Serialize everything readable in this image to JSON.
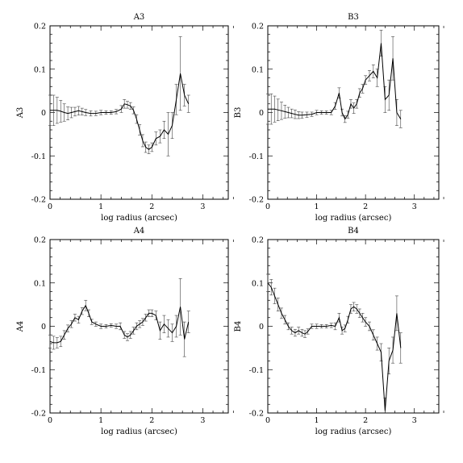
{
  "chart_data": [
    {
      "type": "line",
      "title": "A3",
      "xlabel": "log radius (arcsec)",
      "ylabel": "A3",
      "xlim": [
        0,
        3.5
      ],
      "ylim": [
        -0.2,
        0.2
      ],
      "xticks": [
        "0",
        "1",
        "2",
        "3"
      ],
      "yticks": [
        "-0.2",
        "-0.1",
        "0",
        "0.1",
        "0.2"
      ],
      "grid": false,
      "error_bars": true,
      "series": [
        {
          "x": [
            0.0,
            0.07,
            0.14,
            0.21,
            0.28,
            0.35,
            0.42,
            0.49,
            0.56,
            0.63,
            0.7,
            0.8,
            0.9,
            1.0,
            1.1,
            1.2,
            1.3,
            1.4,
            1.46,
            1.52,
            1.58,
            1.64,
            1.7,
            1.76,
            1.82,
            1.88,
            1.94,
            2.0,
            2.08,
            2.16,
            2.24,
            2.32,
            2.4,
            2.48,
            2.56,
            2.64,
            2.72
          ],
          "y": [
            0.005,
            0.005,
            0.005,
            0.003,
            0.0,
            -0.002,
            0.0,
            0.002,
            0.004,
            0.002,
            0.0,
            -0.002,
            -0.002,
            0.0,
            0.0,
            0.0,
            0.002,
            0.008,
            0.02,
            0.018,
            0.015,
            0.005,
            -0.015,
            -0.04,
            -0.065,
            -0.08,
            -0.085,
            -0.08,
            -0.06,
            -0.055,
            -0.04,
            -0.05,
            -0.03,
            0.03,
            0.09,
            0.04,
            0.02
          ],
          "err": [
            0.035,
            0.035,
            0.03,
            0.025,
            0.02,
            0.015,
            0.012,
            0.01,
            0.01,
            0.008,
            0.007,
            0.006,
            0.005,
            0.005,
            0.004,
            0.004,
            0.005,
            0.008,
            0.01,
            0.008,
            0.008,
            0.008,
            0.01,
            0.012,
            0.014,
            0.012,
            0.01,
            0.01,
            0.015,
            0.015,
            0.02,
            0.05,
            0.03,
            0.035,
            0.085,
            0.025,
            0.02
          ]
        }
      ]
    },
    {
      "type": "line",
      "title": "B3",
      "xlabel": "log radius (arcsec)",
      "ylabel": "B3",
      "xlim": [
        0,
        3.5
      ],
      "ylim": [
        -0.2,
        0.2
      ],
      "xticks": [
        "0",
        "1",
        "2",
        "3"
      ],
      "yticks": [
        "-0.2",
        "-0.1",
        "0",
        "0.1",
        "0.2"
      ],
      "grid": false,
      "error_bars": true,
      "series": [
        {
          "x": [
            0.0,
            0.07,
            0.14,
            0.21,
            0.28,
            0.35,
            0.42,
            0.49,
            0.56,
            0.63,
            0.7,
            0.8,
            0.9,
            1.0,
            1.1,
            1.2,
            1.3,
            1.38,
            1.46,
            1.52,
            1.58,
            1.64,
            1.7,
            1.76,
            1.82,
            1.88,
            1.94,
            2.0,
            2.08,
            2.16,
            2.24,
            2.32,
            2.4,
            2.48,
            2.56,
            2.64,
            2.72
          ],
          "y": [
            0.008,
            0.008,
            0.008,
            0.006,
            0.004,
            0.002,
            0.0,
            -0.002,
            -0.004,
            -0.006,
            -0.006,
            -0.005,
            -0.004,
            0.0,
            0.0,
            0.0,
            0.0,
            0.015,
            0.045,
            0.0,
            -0.015,
            -0.005,
            0.02,
            0.01,
            0.02,
            0.045,
            0.055,
            0.075,
            0.085,
            0.095,
            0.08,
            0.16,
            0.03,
            0.04,
            0.125,
            0.0,
            -0.015
          ],
          "err": [
            0.035,
            0.035,
            0.03,
            0.025,
            0.02,
            0.015,
            0.012,
            0.01,
            0.01,
            0.008,
            0.007,
            0.006,
            0.005,
            0.005,
            0.004,
            0.004,
            0.005,
            0.008,
            0.012,
            0.008,
            0.008,
            0.008,
            0.01,
            0.012,
            0.01,
            0.01,
            0.01,
            0.01,
            0.012,
            0.015,
            0.02,
            0.03,
            0.03,
            0.035,
            0.05,
            0.03,
            0.02
          ]
        }
      ]
    },
    {
      "type": "line",
      "title": "A4",
      "xlabel": "log radius (arcsec)",
      "ylabel": "A4",
      "xlim": [
        0,
        3.5
      ],
      "ylim": [
        -0.2,
        0.2
      ],
      "xticks": [
        "0",
        "1",
        "2",
        "3"
      ],
      "yticks": [
        "-0.2",
        "-0.1",
        "0",
        "0.1",
        "0.2"
      ],
      "grid": false,
      "error_bars": true,
      "series": [
        {
          "x": [
            0.0,
            0.07,
            0.14,
            0.21,
            0.28,
            0.35,
            0.42,
            0.49,
            0.56,
            0.63,
            0.7,
            0.76,
            0.82,
            0.9,
            1.0,
            1.1,
            1.2,
            1.3,
            1.38,
            1.46,
            1.52,
            1.58,
            1.64,
            1.7,
            1.76,
            1.82,
            1.88,
            1.94,
            2.0,
            2.08,
            2.16,
            2.24,
            2.32,
            2.4,
            2.48,
            2.56,
            2.64,
            2.72
          ],
          "y": [
            -0.035,
            -0.038,
            -0.038,
            -0.035,
            -0.02,
            -0.005,
            0.005,
            0.02,
            0.015,
            0.035,
            0.048,
            0.03,
            0.01,
            0.005,
            0.0,
            0.0,
            0.002,
            0.0,
            0.0,
            -0.02,
            -0.025,
            -0.02,
            -0.01,
            0.0,
            0.005,
            0.01,
            0.02,
            0.03,
            0.03,
            0.025,
            -0.01,
            0.005,
            -0.005,
            -0.015,
            0.0,
            0.045,
            -0.03,
            0.01
          ],
          "err": [
            0.015,
            0.015,
            0.012,
            0.012,
            0.01,
            0.008,
            0.008,
            0.008,
            0.008,
            0.008,
            0.012,
            0.008,
            0.006,
            0.005,
            0.005,
            0.004,
            0.004,
            0.005,
            0.008,
            0.008,
            0.008,
            0.008,
            0.008,
            0.008,
            0.008,
            0.008,
            0.008,
            0.008,
            0.008,
            0.01,
            0.02,
            0.02,
            0.02,
            0.02,
            0.025,
            0.065,
            0.04,
            0.025
          ]
        }
      ]
    },
    {
      "type": "line",
      "title": "B4",
      "xlabel": "log radius (arcsec)",
      "ylabel": "B4",
      "xlim": [
        0,
        3.5
      ],
      "ylim": [
        -0.2,
        0.2
      ],
      "xticks": [
        "0",
        "1",
        "2",
        "3"
      ],
      "yticks": [
        "-0.2",
        "-0.1",
        "0",
        "0.1",
        "0.2"
      ],
      "grid": false,
      "error_bars": true,
      "series": [
        {
          "x": [
            0.0,
            0.07,
            0.14,
            0.21,
            0.28,
            0.35,
            0.42,
            0.49,
            0.56,
            0.63,
            0.7,
            0.76,
            0.82,
            0.9,
            1.0,
            1.1,
            1.2,
            1.3,
            1.38,
            1.46,
            1.52,
            1.58,
            1.64,
            1.7,
            1.76,
            1.82,
            1.88,
            1.94,
            2.0,
            2.08,
            2.16,
            2.24,
            2.32,
            2.4,
            2.48,
            2.56,
            2.64,
            2.72
          ],
          "y": [
            0.1,
            0.09,
            0.07,
            0.05,
            0.03,
            0.015,
            0.0,
            -0.01,
            -0.015,
            -0.01,
            -0.015,
            -0.018,
            -0.012,
            0.0,
            0.0,
            0.0,
            0.0,
            0.002,
            0.0,
            0.02,
            -0.01,
            -0.005,
            0.015,
            0.04,
            0.045,
            0.04,
            0.03,
            0.02,
            0.01,
            0.0,
            -0.02,
            -0.04,
            -0.06,
            -0.195,
            -0.08,
            -0.055,
            0.03,
            -0.05
          ],
          "err": [
            0.02,
            0.018,
            0.018,
            0.015,
            0.012,
            0.01,
            0.008,
            0.008,
            0.008,
            0.008,
            0.008,
            0.008,
            0.006,
            0.005,
            0.005,
            0.004,
            0.004,
            0.005,
            0.008,
            0.01,
            0.008,
            0.008,
            0.008,
            0.01,
            0.01,
            0.01,
            0.01,
            0.01,
            0.01,
            0.01,
            0.012,
            0.015,
            0.02,
            0.03,
            0.03,
            0.03,
            0.04,
            0.035
          ]
        }
      ]
    }
  ]
}
